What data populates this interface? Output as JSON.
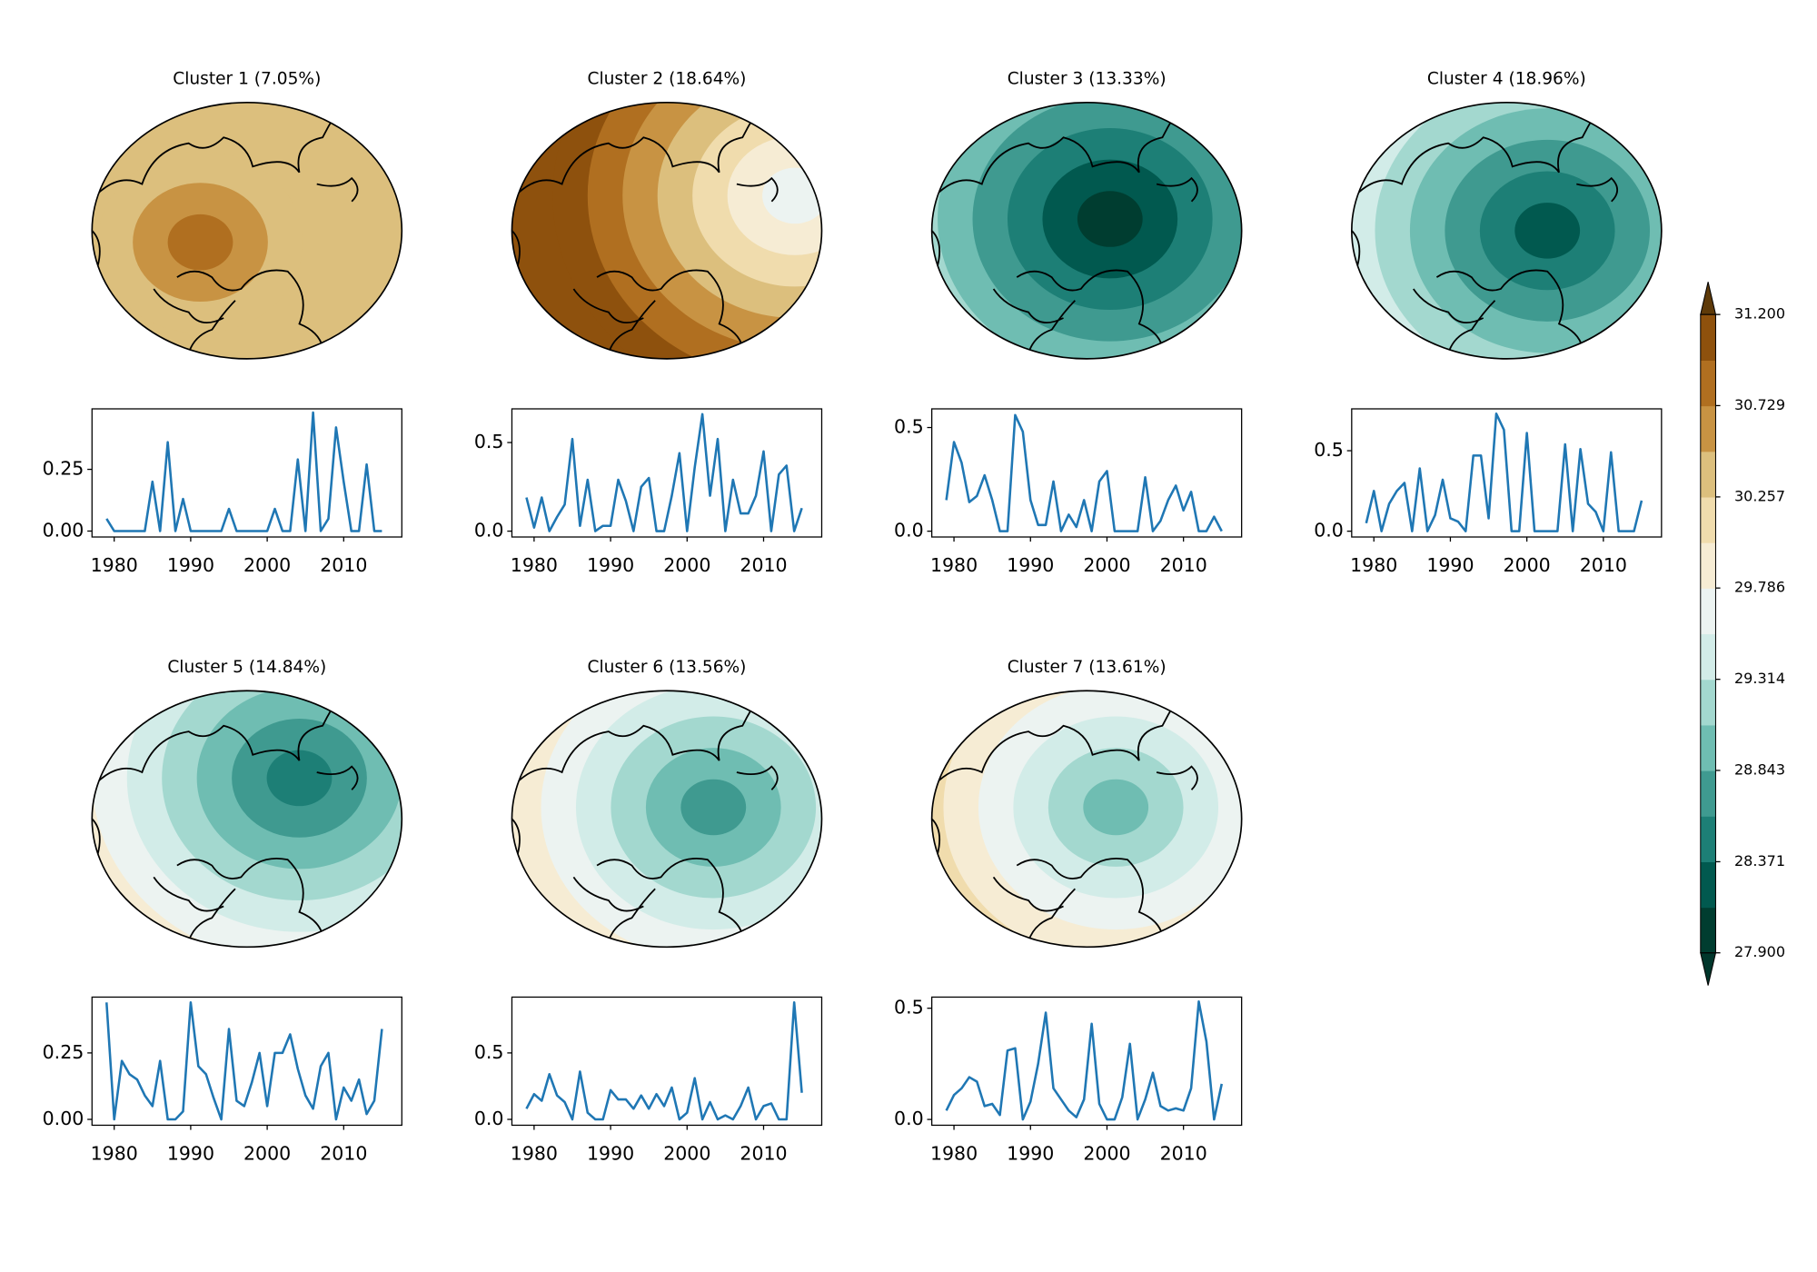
{
  "chart_data": [
    {
      "type": "line",
      "title": "Cluster 1 (7.05%)",
      "color": "#1f77b4",
      "x": [
        1979,
        1980,
        1981,
        1982,
        1983,
        1984,
        1985,
        1986,
        1987,
        1988,
        1989,
        1990,
        1991,
        1992,
        1993,
        1994,
        1995,
        1996,
        1997,
        1998,
        1999,
        2000,
        2001,
        2002,
        2003,
        2004,
        2005,
        2006,
        2007,
        2008,
        2009,
        2010,
        2011,
        2012,
        2013,
        2014,
        2015
      ],
      "values": [
        0.05,
        0,
        0,
        0,
        0,
        0,
        0.2,
        0,
        0.36,
        0,
        0.13,
        0,
        0,
        0,
        0,
        0,
        0.09,
        0,
        0,
        0,
        0,
        0,
        0.09,
        0,
        0,
        0.29,
        0,
        0.48,
        0,
        0.05,
        0.42,
        0.2,
        0,
        0,
        0.27,
        0,
        0
      ],
      "xlim": [
        1977.1,
        2017.6
      ],
      "xticks": [
        1980,
        1990,
        2000,
        2010
      ],
      "ylim": [
        -0.024,
        0.495
      ],
      "yticks": [
        {
          "value": 0,
          "label": "0.00"
        },
        {
          "value": 0.25,
          "label": "0.25"
        }
      ]
    },
    {
      "type": "line",
      "title": "Cluster 2 (18.64%)",
      "color": "#1f77b4",
      "x": [
        1979,
        1980,
        1981,
        1982,
        1983,
        1984,
        1985,
        1986,
        1987,
        1988,
        1989,
        1990,
        1991,
        1992,
        1993,
        1994,
        1995,
        1996,
        1997,
        1998,
        1999,
        2000,
        2001,
        2002,
        2003,
        2004,
        2005,
        2006,
        2007,
        2008,
        2009,
        2010,
        2011,
        2012,
        2013,
        2014,
        2015
      ],
      "values": [
        0.19,
        0.02,
        0.19,
        0,
        0.08,
        0.15,
        0.52,
        0.03,
        0.29,
        0,
        0.03,
        0.03,
        0.29,
        0.17,
        0,
        0.25,
        0.3,
        0,
        0,
        0.2,
        0.44,
        0,
        0.36,
        0.66,
        0.2,
        0.52,
        0,
        0.29,
        0.1,
        0.1,
        0.2,
        0.45,
        0,
        0.32,
        0.37,
        0,
        0.13
      ],
      "xlim": [
        1977.1,
        2017.6
      ],
      "xticks": [
        1980,
        1990,
        2000,
        2010
      ],
      "ylim": [
        -0.033,
        0.69
      ],
      "yticks": [
        {
          "value": 0,
          "label": "0.0"
        },
        {
          "value": 0.5,
          "label": "0.5"
        }
      ]
    },
    {
      "type": "line",
      "title": "Cluster 3 (13.33%)",
      "color": "#1f77b4",
      "x": [
        1979,
        1980,
        1981,
        1982,
        1983,
        1984,
        1985,
        1986,
        1987,
        1988,
        1989,
        1990,
        1991,
        1992,
        1993,
        1994,
        1995,
        1996,
        1997,
        1998,
        1999,
        2000,
        2001,
        2002,
        2003,
        2004,
        2005,
        2006,
        2007,
        2008,
        2009,
        2010,
        2011,
        2012,
        2013,
        2014,
        2015
      ],
      "values": [
        0.15,
        0.43,
        0.33,
        0.14,
        0.17,
        0.27,
        0.15,
        0,
        0,
        0.56,
        0.48,
        0.15,
        0.03,
        0.03,
        0.24,
        0,
        0.08,
        0.02,
        0.15,
        0,
        0.24,
        0.29,
        0,
        0,
        0,
        0,
        0.26,
        0,
        0.05,
        0.15,
        0.22,
        0.1,
        0.19,
        0,
        0,
        0.07,
        0
      ],
      "xlim": [
        1977.1,
        2017.6
      ],
      "xticks": [
        1980,
        1990,
        2000,
        2010
      ],
      "ylim": [
        -0.028,
        0.59
      ],
      "yticks": [
        {
          "value": 0,
          "label": "0.0"
        },
        {
          "value": 0.5,
          "label": "0.5"
        }
      ]
    },
    {
      "type": "line",
      "title": "Cluster 4 (18.96%)",
      "color": "#1f77b4",
      "x": [
        1979,
        1980,
        1981,
        1982,
        1983,
        1984,
        1985,
        1986,
        1987,
        1988,
        1989,
        1990,
        1991,
        1992,
        1993,
        1994,
        1995,
        1996,
        1997,
        1998,
        1999,
        2000,
        2001,
        2002,
        2003,
        2004,
        2005,
        2006,
        2007,
        2008,
        2009,
        2010,
        2011,
        2012,
        2013,
        2014,
        2015
      ],
      "values": [
        0.05,
        0.25,
        0,
        0.17,
        0.25,
        0.3,
        0,
        0.39,
        0,
        0.1,
        0.32,
        0.08,
        0.06,
        0,
        0.47,
        0.47,
        0.08,
        0.73,
        0.63,
        0,
        0,
        0.61,
        0,
        0,
        0,
        0,
        0.54,
        0,
        0.51,
        0.17,
        0.12,
        0,
        0.49,
        0,
        0,
        0,
        0.19
      ],
      "xlim": [
        1977.1,
        2017.6
      ],
      "xticks": [
        1980,
        1990,
        2000,
        2010
      ],
      "ylim": [
        -0.036,
        0.76
      ],
      "yticks": [
        {
          "value": 0,
          "label": "0.0"
        },
        {
          "value": 0.5,
          "label": "0.5"
        }
      ]
    },
    {
      "type": "line",
      "title": "Cluster 5 (14.84%)",
      "color": "#1f77b4",
      "x": [
        1979,
        1980,
        1981,
        1982,
        1983,
        1984,
        1985,
        1986,
        1987,
        1988,
        1989,
        1990,
        1991,
        1992,
        1993,
        1994,
        1995,
        1996,
        1997,
        1998,
        1999,
        2000,
        2001,
        2002,
        2003,
        2004,
        2005,
        2006,
        2007,
        2008,
        2009,
        2010,
        2011,
        2012,
        2013,
        2014,
        2015
      ],
      "values": [
        0.44,
        0,
        0.22,
        0.17,
        0.15,
        0.09,
        0.05,
        0.22,
        0,
        0,
        0.03,
        0.44,
        0.2,
        0.17,
        0.08,
        0,
        0.34,
        0.07,
        0.05,
        0.14,
        0.25,
        0.05,
        0.25,
        0.25,
        0.32,
        0.19,
        0.09,
        0.04,
        0.2,
        0.25,
        0,
        0.12,
        0.07,
        0.15,
        0.02,
        0.07,
        0.34
      ],
      "xlim": [
        1977.1,
        2017.6
      ],
      "xticks": [
        1980,
        1990,
        2000,
        2010
      ],
      "ylim": [
        -0.022,
        0.46
      ],
      "yticks": [
        {
          "value": 0,
          "label": "0.00"
        },
        {
          "value": 0.25,
          "label": "0.25"
        }
      ]
    },
    {
      "type": "line",
      "title": "Cluster 6 (13.56%)",
      "color": "#1f77b4",
      "x": [
        1979,
        1980,
        1981,
        1982,
        1983,
        1984,
        1985,
        1986,
        1987,
        1988,
        1989,
        1990,
        1991,
        1992,
        1993,
        1994,
        1995,
        1996,
        1997,
        1998,
        1999,
        2000,
        2001,
        2002,
        2003,
        2004,
        2005,
        2006,
        2007,
        2008,
        2009,
        2010,
        2011,
        2012,
        2013,
        2014,
        2015
      ],
      "values": [
        0.08,
        0.19,
        0.14,
        0.34,
        0.18,
        0.13,
        0,
        0.36,
        0.05,
        0,
        0,
        0.22,
        0.15,
        0.15,
        0.08,
        0.18,
        0.08,
        0.19,
        0.1,
        0.24,
        0,
        0.05,
        0.31,
        0,
        0.13,
        0,
        0.03,
        0,
        0.1,
        0.24,
        0,
        0.1,
        0.12,
        0,
        0,
        0.88,
        0.2
      ],
      "xlim": [
        1977.1,
        2017.6
      ],
      "xticks": [
        1980,
        1990,
        2000,
        2010
      ],
      "ylim": [
        -0.044,
        0.92
      ],
      "yticks": [
        {
          "value": 0,
          "label": "0.0"
        },
        {
          "value": 0.5,
          "label": "0.5"
        }
      ]
    },
    {
      "type": "line",
      "title": "Cluster 7 (13.61%)",
      "color": "#1f77b4",
      "x": [
        1979,
        1980,
        1981,
        1982,
        1983,
        1984,
        1985,
        1986,
        1987,
        1988,
        1989,
        1990,
        1991,
        1992,
        1993,
        1994,
        1995,
        1996,
        1997,
        1998,
        1999,
        2000,
        2001,
        2002,
        2003,
        2004,
        2005,
        2006,
        2007,
        2008,
        2009,
        2010,
        2011,
        2012,
        2013,
        2014,
        2015
      ],
      "values": [
        0.04,
        0.11,
        0.14,
        0.19,
        0.17,
        0.06,
        0.07,
        0.02,
        0.31,
        0.32,
        0,
        0.08,
        0.25,
        0.48,
        0.14,
        0.09,
        0.04,
        0.01,
        0.09,
        0.43,
        0.07,
        0,
        0,
        0.1,
        0.34,
        0,
        0.09,
        0.21,
        0.06,
        0.04,
        0.05,
        0.04,
        0.14,
        0.53,
        0.35,
        0,
        0.16
      ],
      "xlim": [
        1977.1,
        2017.6
      ],
      "xticks": [
        1980,
        1990,
        2000,
        2010
      ],
      "ylim": [
        -0.026,
        0.55
      ],
      "yticks": [
        {
          "value": 0,
          "label": "0.0"
        },
        {
          "value": 0.5,
          "label": "0.5"
        }
      ]
    },
    {
      "type": "colorbar",
      "colors": [
        "#003d30",
        "#01594f",
        "#1d7f76",
        "#3f9a90",
        "#6fbdb2",
        "#a3d8cf",
        "#d2ece8",
        "#ecf3f1",
        "#f6ecd4",
        "#f0dcad",
        "#dcbf7d",
        "#c89343",
        "#b06f20",
        "#8e510d"
      ],
      "under_color": "#00362b",
      "over_color": "#5e3a09",
      "clim": [
        27.9,
        31.2
      ],
      "ticks": [
        {
          "value": 27.9,
          "label": "27.900"
        },
        {
          "value": 28.371,
          "label": "28.371"
        },
        {
          "value": 28.843,
          "label": "28.843"
        },
        {
          "value": 29.314,
          "label": "29.314"
        },
        {
          "value": 29.786,
          "label": "29.786"
        },
        {
          "value": 30.257,
          "label": "30.257"
        },
        {
          "value": 30.729,
          "label": "30.729"
        },
        {
          "value": 31.2,
          "label": "31.200"
        }
      ]
    }
  ]
}
